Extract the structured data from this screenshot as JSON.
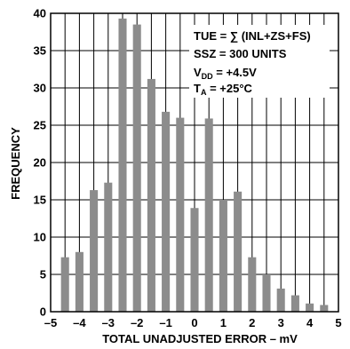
{
  "chart_data": {
    "type": "bar",
    "title": "",
    "xlabel": "TOTAL UNADJUSTED ERROR – mV",
    "ylabel": "FREQUENCY",
    "xlim": [
      -5,
      5
    ],
    "ylim": [
      0,
      40
    ],
    "xticks": [
      -5,
      -4,
      -3,
      -2,
      -1,
      0,
      1,
      2,
      3,
      4,
      5
    ],
    "xtick_labels": [
      "–5",
      "–4",
      "–3",
      "–2",
      "–1",
      "0",
      "1",
      "2",
      "3",
      "4",
      "5"
    ],
    "yticks": [
      0,
      5,
      10,
      15,
      20,
      25,
      30,
      35,
      40
    ],
    "ytick_labels": [
      "0",
      "5",
      "10",
      "15",
      "20",
      "25",
      "30",
      "35",
      "40"
    ],
    "bin_width": 0.5,
    "bin_centers": [
      -4.5,
      -4.0,
      -3.5,
      -3.0,
      -2.5,
      -2.0,
      -1.5,
      -1.0,
      -0.5,
      0.0,
      0.5,
      1.0,
      1.5,
      2.0,
      2.5,
      3.0,
      3.5,
      4.0,
      4.5
    ],
    "values": [
      7.3,
      8.0,
      16.3,
      17.3,
      39.3,
      38.5,
      31.2,
      26.8,
      26.0,
      13.9,
      25.9,
      15.0,
      16.1,
      7.3,
      5.0,
      3.1,
      2.2,
      1.1,
      0.9
    ],
    "grid": true,
    "bar_color": "#8c8c8c",
    "annotation": {
      "line1": "TUE = ∑ (INL+ZS+FS)",
      "line2": "SSZ = 300 UNITS",
      "line3_main": "V",
      "line3_sub": "DD",
      "line3_rest": " = +4.5V",
      "line4_main": "T",
      "line4_sub": "A",
      "line4_rest": " = +25°C"
    }
  }
}
